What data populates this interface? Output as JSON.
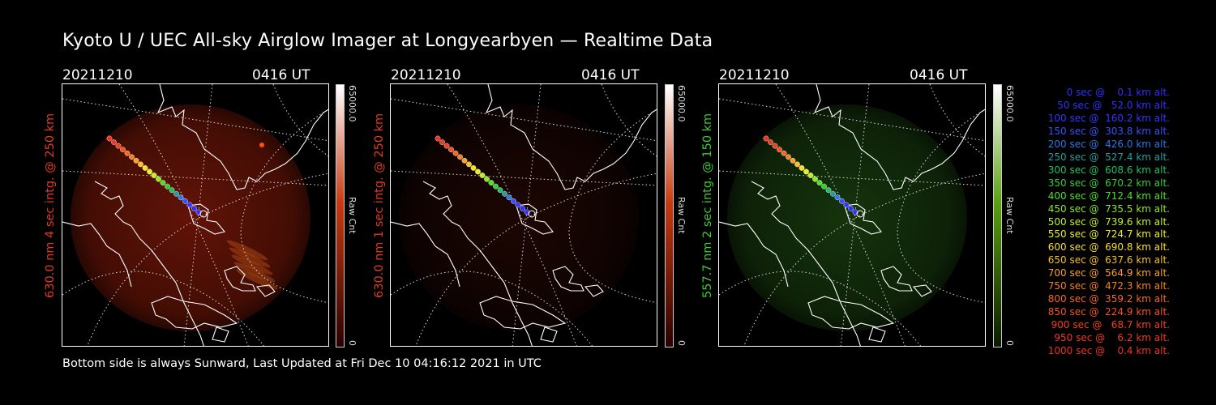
{
  "title": "Kyoto U / UEC All-sky Airglow Imager at Longyearbyen — Realtime Data",
  "footer": "Bottom side is always Sunward, Last Updated at Fri Dec 10 04:16:12 2021 in UTC",
  "panels": [
    {
      "date": "20211210",
      "time": "0416 UT",
      "ylabel": "630.0 nm 4 sec intg. @ 250 km",
      "label_color": "#e03a20",
      "colorbar": {
        "max_label": "65000.0",
        "unit_label": "Raw Cnt",
        "min_label": "0",
        "top_color": "#ffffff",
        "mid_color": "#c83a10",
        "bottom_color": "#2a0000"
      },
      "glow_color": "#7a1808",
      "glow_level": 0.55
    },
    {
      "date": "20211210",
      "time": "0416 UT",
      "ylabel": "630.0 nm 1 sec intg. @ 250 km",
      "label_color": "#e03a20",
      "colorbar": {
        "max_label": "65000.0",
        "unit_label": "Raw Cnt",
        "min_label": "0",
        "top_color": "#ffffff",
        "mid_color": "#c83a10",
        "bottom_color": "#2a0000"
      },
      "glow_color": "#3a0c06",
      "glow_level": 0.25
    },
    {
      "date": "20211210",
      "time": "0416 UT",
      "ylabel": "557.7 nm 2 sec intg. @ 150 km",
      "label_color": "#3ccc30",
      "colorbar": {
        "max_label": "65000.0",
        "unit_label": "Raw Cnt",
        "min_label": "0",
        "top_color": "#ffffff",
        "mid_color": "#5aa010",
        "bottom_color": "#0a1a00"
      },
      "glow_color": "#1e4a12",
      "glow_level": 0.45
    }
  ],
  "trajectory_legend": [
    {
      "text": "   0 sec @    0.1 km alt.",
      "color": "#3030ff"
    },
    {
      "text": "  50 sec @   52.0 km alt.",
      "color": "#3030ff"
    },
    {
      "text": " 100 sec @  160.2 km alt.",
      "color": "#3535ff"
    },
    {
      "text": " 150 sec @  303.8 km alt.",
      "color": "#3a50ff"
    },
    {
      "text": " 200 sec @  426.0 km alt.",
      "color": "#2a78e8"
    },
    {
      "text": " 250 sec @  527.4 km alt.",
      "color": "#20a0a0"
    },
    {
      "text": " 300 sec @  608.6 km alt.",
      "color": "#20c060"
    },
    {
      "text": " 350 sec @  670.2 km alt.",
      "color": "#30d030"
    },
    {
      "text": " 400 sec @  712.4 km alt.",
      "color": "#50e020"
    },
    {
      "text": " 450 sec @  735.5 km alt.",
      "color": "#90e820"
    },
    {
      "text": " 500 sec @  739.6 km alt.",
      "color": "#c0f020"
    },
    {
      "text": " 550 sec @  724.7 km alt.",
      "color": "#e8f020"
    },
    {
      "text": " 600 sec @  690.8 km alt.",
      "color": "#f8e020"
    },
    {
      "text": " 650 sec @  637.6 km alt.",
      "color": "#f8c020"
    },
    {
      "text": " 700 sec @  564.9 km alt.",
      "color": "#f8a020"
    },
    {
      "text": " 750 sec @  472.3 km alt.",
      "color": "#f88020"
    },
    {
      "text": " 800 sec @  359.2 km alt.",
      "color": "#f86820"
    },
    {
      "text": " 850 sec @  224.9 km alt.",
      "color": "#f85020"
    },
    {
      "text": " 900 sec @   68.7 km alt.",
      "color": "#f04020"
    },
    {
      "text": " 950 sec @    6.2 km alt.",
      "color": "#f03820"
    },
    {
      "text": "1000 sec @    0.4 km alt.",
      "color": "#f03020"
    }
  ]
}
